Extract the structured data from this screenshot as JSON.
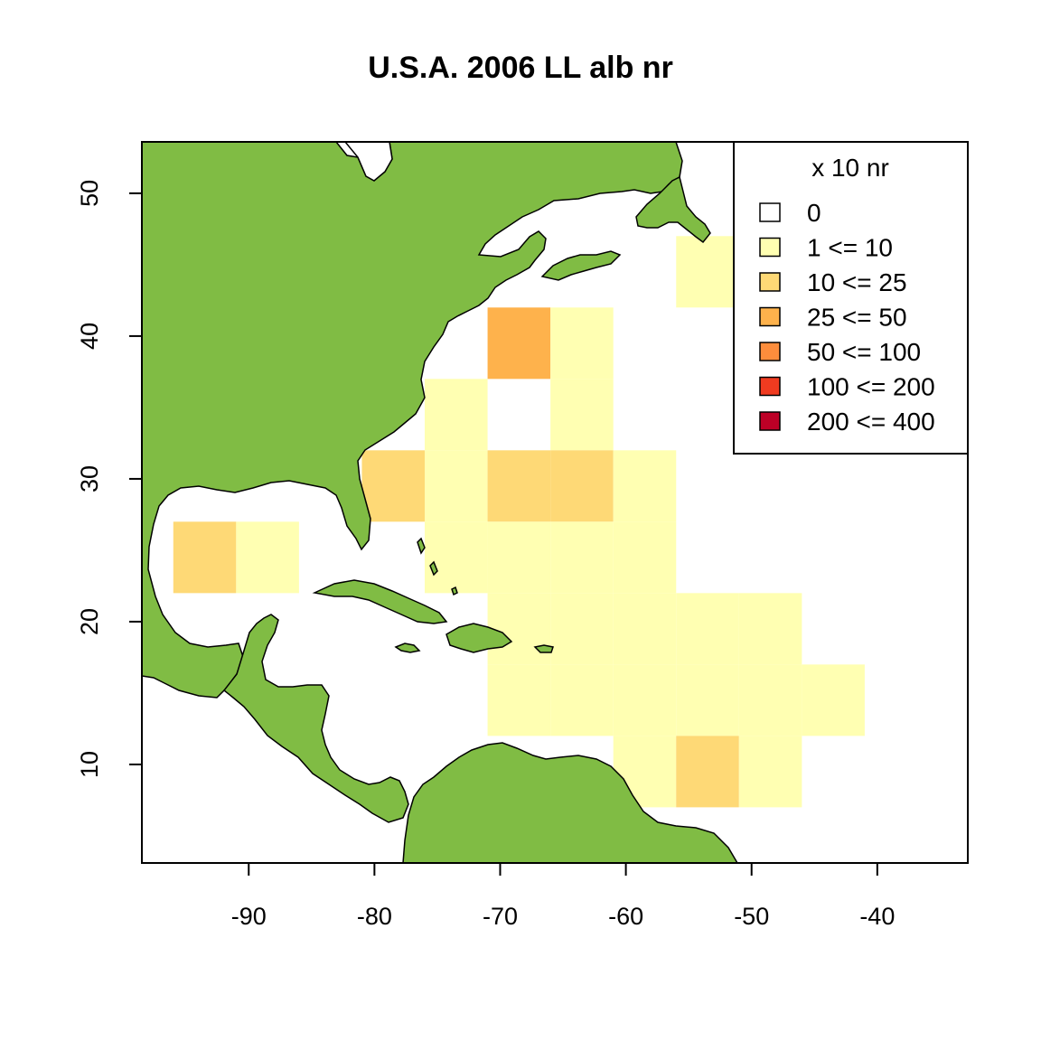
{
  "title": "U.S.A. 2006 LL alb nr",
  "chart_data": {
    "type": "heatmap",
    "title": "U.S.A. 2006 LL alb nr",
    "xlabel": "",
    "ylabel": "",
    "xlim": [
      -98.5,
      -32.8
    ],
    "ylim": [
      3.1,
      53.6
    ],
    "x_ticks": [
      "-90",
      "-80",
      "-70",
      "-60",
      "-50",
      "-40"
    ],
    "x_tick_values": [
      -90,
      -80,
      -70,
      -60,
      -50,
      -40
    ],
    "y_ticks": [
      "10",
      "20",
      "30",
      "40",
      "50"
    ],
    "y_tick_values": [
      10,
      20,
      30,
      40,
      50
    ],
    "grid": false,
    "cell_size_deg": 5,
    "cell_units": "x 10 nr",
    "cells": [
      {
        "lon": -96,
        "lat": 22,
        "class": 2
      },
      {
        "lon": -91,
        "lat": 22,
        "class": 1
      },
      {
        "lon": -81,
        "lat": 27,
        "class": 2
      },
      {
        "lon": -76,
        "lat": 32,
        "class": 1
      },
      {
        "lon": -76,
        "lat": 27,
        "class": 1
      },
      {
        "lon": -76,
        "lat": 22,
        "class": 1
      },
      {
        "lon": -71,
        "lat": 37,
        "class": 3
      },
      {
        "lon": -71,
        "lat": 27,
        "class": 2
      },
      {
        "lon": -71,
        "lat": 22,
        "class": 1
      },
      {
        "lon": -71,
        "lat": 17,
        "class": 1
      },
      {
        "lon": -71,
        "lat": 12,
        "class": 1
      },
      {
        "lon": -66,
        "lat": 37,
        "class": 1
      },
      {
        "lon": -66,
        "lat": 32,
        "class": 1
      },
      {
        "lon": -66,
        "lat": 27,
        "class": 2
      },
      {
        "lon": -66,
        "lat": 22,
        "class": 1
      },
      {
        "lon": -66,
        "lat": 17,
        "class": 1
      },
      {
        "lon": -66,
        "lat": 12,
        "class": 1
      },
      {
        "lon": -61,
        "lat": 27,
        "class": 1
      },
      {
        "lon": -61,
        "lat": 22,
        "class": 1
      },
      {
        "lon": -61,
        "lat": 17,
        "class": 1
      },
      {
        "lon": -61,
        "lat": 12,
        "class": 1
      },
      {
        "lon": -61,
        "lat": 7,
        "class": 1
      },
      {
        "lon": -56,
        "lat": 42,
        "class": 1
      },
      {
        "lon": -56,
        "lat": 17,
        "class": 1
      },
      {
        "lon": -56,
        "lat": 12,
        "class": 1
      },
      {
        "lon": -56,
        "lat": 7,
        "class": 2
      },
      {
        "lon": -51,
        "lat": 17,
        "class": 1
      },
      {
        "lon": -51,
        "lat": 12,
        "class": 1
      },
      {
        "lon": -51,
        "lat": 7,
        "class": 1
      },
      {
        "lon": -46,
        "lat": 12,
        "class": 1
      }
    ],
    "legend": {
      "title": "x 10 nr",
      "position": "top-right",
      "entries": [
        {
          "label": "0",
          "color": "#FFFFFF"
        },
        {
          "label": "1 <= 10",
          "color": "#FFFFB2"
        },
        {
          "label": "10 <= 25",
          "color": "#FED976"
        },
        {
          "label": "25 <= 50",
          "color": "#FEB24C"
        },
        {
          "label": "50 <= 100",
          "color": "#FD8D3C"
        },
        {
          "label": "100 <= 200",
          "color": "#F03B20"
        },
        {
          "label": "200 <= 400",
          "color": "#BD0026"
        }
      ]
    },
    "land_color": "#80BC44",
    "ocean_color": "#FFFFFF"
  }
}
